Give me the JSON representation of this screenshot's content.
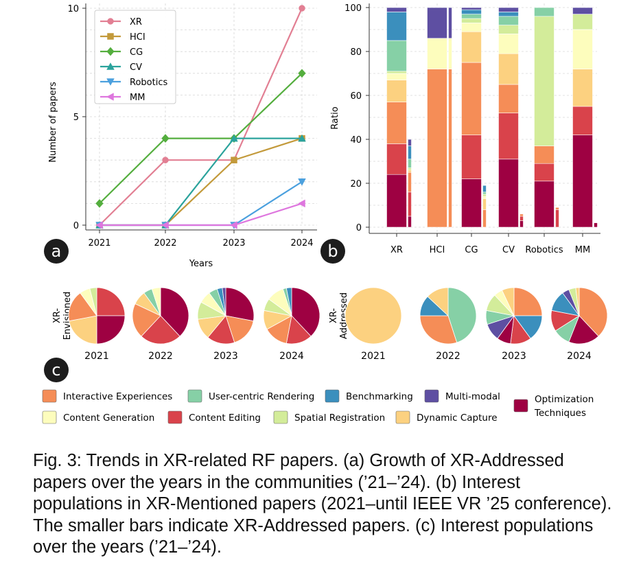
{
  "colors": {
    "Interactive Experiences": "#f58d57",
    "User-centric Rendering": "#86d0a6",
    "Benchmarking": "#3b8fbd",
    "Multi-modal": "#5e4fa2",
    "Content Generation": "#fdfdbd",
    "Content Editing": "#d9434b",
    "Spatial Registration": "#d3ec9a",
    "Dynamic Capture": "#fcd180",
    "Optimization Techniques": "#9e0142"
  },
  "panels": {
    "a": "a",
    "b": "b",
    "c": "c"
  },
  "chart_data": [
    {
      "id": "a",
      "type": "line",
      "xlabel": "Years",
      "ylabel": "Number of papers",
      "x": [
        2021,
        2022,
        2023,
        2024
      ],
      "xticks": [
        "2021",
        "2022",
        "2023",
        "2024"
      ],
      "yticks": [
        0,
        5,
        10
      ],
      "ylim": [
        0,
        10
      ],
      "grid": true,
      "legend": "top-left",
      "series": [
        {
          "name": "XR",
          "values": [
            0,
            3,
            3,
            10
          ],
          "color": "#e27f93",
          "marker": "circle"
        },
        {
          "name": "HCI",
          "values": [
            0,
            0,
            3,
            4
          ],
          "color": "#c39a3b",
          "marker": "square"
        },
        {
          "name": "CG",
          "values": [
            1,
            4,
            4,
            7
          ],
          "color": "#54ae3e",
          "marker": "diamond"
        },
        {
          "name": "CV",
          "values": [
            0,
            0,
            4,
            4
          ],
          "color": "#2ba39c",
          "marker": "triangle-up"
        },
        {
          "name": "Robotics",
          "values": [
            0,
            0,
            0,
            2
          ],
          "color": "#4ba0de",
          "marker": "triangle-down"
        },
        {
          "name": "MM",
          "values": [
            0,
            0,
            0,
            1
          ],
          "color": "#de76de",
          "marker": "triangle-left"
        }
      ]
    },
    {
      "id": "b",
      "type": "bar",
      "stacked": true,
      "ylabel": "Ratio",
      "ylim": [
        0,
        100
      ],
      "yticks": [
        0,
        20,
        40,
        60,
        80,
        100
      ],
      "grid": true,
      "categories": [
        "XR",
        "HCI",
        "CG",
        "CV",
        "Robotics",
        "MM"
      ],
      "series_order": [
        "Optimization Techniques",
        "Content Editing",
        "Interactive Experiences",
        "Dynamic Capture",
        "Content Generation",
        "Spatial Registration",
        "User-centric Rendering",
        "Benchmarking",
        "Multi-modal"
      ],
      "mentioned": [
        {
          "Optimization Techniques": 24,
          "Content Editing": 14,
          "Interactive Experiences": 19,
          "Dynamic Capture": 10,
          "Content Generation": 3,
          "Spatial Registration": 1,
          "User-centric Rendering": 14,
          "Benchmarking": 13,
          "Multi-modal": 2
        },
        {
          "Interactive Experiences": 72,
          "Content Generation": 14,
          "Multi-modal": 14
        },
        {
          "Optimization Techniques": 22,
          "Content Editing": 20,
          "Interactive Experiences": 33,
          "Dynamic Capture": 14,
          "Content Generation": 4,
          "Spatial Registration": 2,
          "User-centric Rendering": 2,
          "Benchmarking": 2,
          "Multi-modal": 1
        },
        {
          "Optimization Techniques": 31,
          "Content Editing": 21,
          "Interactive Experiences": 13,
          "Dynamic Capture": 14,
          "Content Generation": 9,
          "Spatial Registration": 4,
          "User-centric Rendering": 4,
          "Benchmarking": 2,
          "Multi-modal": 2
        },
        {
          "Optimization Techniques": 21,
          "Content Editing": 8,
          "Interactive Experiences": 8,
          "Spatial Registration": 59,
          "User-centric Rendering": 4
        },
        {
          "Optimization Techniques": 42,
          "Content Editing": 13,
          "Dynamic Capture": 17,
          "Content Generation": 18,
          "Spatial Registration": 7,
          "Multi-modal": 3
        }
      ],
      "addressed": [
        {
          "Optimization Techniques": 5,
          "Content Editing": 11,
          "Interactive Experiences": 9,
          "Dynamic Capture": 1,
          "Spatial Registration": 1,
          "User-centric Rendering": 4,
          "Benchmarking": 6,
          "Multi-modal": 3
        },
        {
          "Interactive Experiences": 72,
          "Content Generation": 14,
          "Multi-modal": 14
        },
        {
          "Interactive Experiences": 8,
          "Dynamic Capture": 5,
          "Content Generation": 1,
          "Spatial Registration": 1,
          "User-centric Rendering": 1,
          "Benchmarking": 3
        },
        {
          "Optimization Techniques": 3,
          "Content Editing": 2,
          "Interactive Experiences": 1
        },
        {
          "Content Editing": 8,
          "Interactive Experiences": 1
        },
        {
          "Optimization Techniques": 2
        }
      ]
    },
    {
      "id": "c",
      "type": "pie",
      "groups": [
        {
          "label": "XR-Envisioned",
          "years": [
            "2021",
            "2022",
            "2023",
            "2024"
          ],
          "pies": [
            [
              {
                "cat": "Content Editing",
                "v": 25
              },
              {
                "cat": "Optimization Techniques",
                "v": 25
              },
              {
                "cat": "Dynamic Capture",
                "v": 22
              },
              {
                "cat": "Interactive Experiences",
                "v": 18
              },
              {
                "cat": "Content Generation",
                "v": 6
              },
              {
                "cat": "Spatial Registration",
                "v": 4
              }
            ],
            [
              {
                "cat": "Optimization Techniques",
                "v": 38
              },
              {
                "cat": "Content Editing",
                "v": 24
              },
              {
                "cat": "Interactive Experiences",
                "v": 20
              },
              {
                "cat": "Dynamic Capture",
                "v": 8
              },
              {
                "cat": "User-centric Rendering",
                "v": 5
              },
              {
                "cat": "Content Generation",
                "v": 5
              }
            ],
            [
              {
                "cat": "Optimization Techniques",
                "v": 28
              },
              {
                "cat": "Interactive Experiences",
                "v": 17
              },
              {
                "cat": "Content Editing",
                "v": 16
              },
              {
                "cat": "Dynamic Capture",
                "v": 12
              },
              {
                "cat": "Spatial Registration",
                "v": 10
              },
              {
                "cat": "Content Generation",
                "v": 7
              },
              {
                "cat": "User-centric Rendering",
                "v": 5
              },
              {
                "cat": "Benchmarking",
                "v": 3
              },
              {
                "cat": "Multi-modal",
                "v": 2
              }
            ],
            [
              {
                "cat": "Optimization Techniques",
                "v": 38
              },
              {
                "cat": "Content Editing",
                "v": 15
              },
              {
                "cat": "Interactive Experiences",
                "v": 14
              },
              {
                "cat": "Dynamic Capture",
                "v": 11
              },
              {
                "cat": "Spatial Registration",
                "v": 7
              },
              {
                "cat": "Content Generation",
                "v": 10
              },
              {
                "cat": "User-centric Rendering",
                "v": 2
              },
              {
                "cat": "Benchmarking",
                "v": 3
              }
            ]
          ]
        },
        {
          "label": "XR-Addressed",
          "years": [
            "2021",
            "2022",
            "2023",
            "2024"
          ],
          "pies": [
            [
              {
                "cat": "Dynamic Capture",
                "v": 100
              }
            ],
            [
              {
                "cat": "User-centric Rendering",
                "v": 45
              },
              {
                "cat": "Interactive Experiences",
                "v": 30
              },
              {
                "cat": "Benchmarking",
                "v": 12
              },
              {
                "cat": "Dynamic Capture",
                "v": 13
              }
            ],
            [
              {
                "cat": "Interactive Experiences",
                "v": 25
              },
              {
                "cat": "Benchmarking",
                "v": 15
              },
              {
                "cat": "Content Editing",
                "v": 12
              },
              {
                "cat": "Optimization Techniques",
                "v": 8
              },
              {
                "cat": "Multi-modal",
                "v": 10
              },
              {
                "cat": "User-centric Rendering",
                "v": 8
              },
              {
                "cat": "Spatial Registration",
                "v": 10
              },
              {
                "cat": "Content Generation",
                "v": 5
              },
              {
                "cat": "Dynamic Capture",
                "v": 7
              }
            ],
            [
              {
                "cat": "Interactive Experiences",
                "v": 38
              },
              {
                "cat": "Optimization Techniques",
                "v": 18
              },
              {
                "cat": "User-centric Rendering",
                "v": 10
              },
              {
                "cat": "Content Editing",
                "v": 12
              },
              {
                "cat": "Benchmarking",
                "v": 12
              },
              {
                "cat": "Multi-modal",
                "v": 4
              },
              {
                "cat": "Spatial Registration",
                "v": 4
              },
              {
                "cat": "Dynamic Capture",
                "v": 2
              }
            ]
          ]
        }
      ],
      "legend": [
        [
          "Interactive Experiences",
          "User-centric Rendering",
          "Benchmarking",
          "Multi-modal"
        ],
        [
          "Content Generation",
          "Content Editing",
          "Spatial Registration",
          "Dynamic Capture"
        ],
        [
          "Optimization Techniques"
        ]
      ],
      "legend_labels": {
        "Interactive Experiences": "Interactive Experiences",
        "User-centric Rendering": "User-centric Rendering",
        "Benchmarking": "Benchmarking",
        "Multi-modal": "Multi-modal",
        "Content Generation": "Content Generation",
        "Content Editing": "Content Editing",
        "Spatial Registration": "Spatial Registration",
        "Dynamic Capture": "Dynamic Capture",
        "Optimization Techniques": [
          "Optimization",
          "Techniques"
        ]
      }
    }
  ],
  "caption": "Fig. 3: Trends in XR-related RF papers. (a) Growth of XR-Addressed papers over the years in the communities (’21–’24). (b) Interest populations in XR-Mentioned papers (2021–until IEEE VR ’25 conference). The smaller bars indicate XR-Addressed papers. (c) Interest populations over the years (’21–’24)."
}
